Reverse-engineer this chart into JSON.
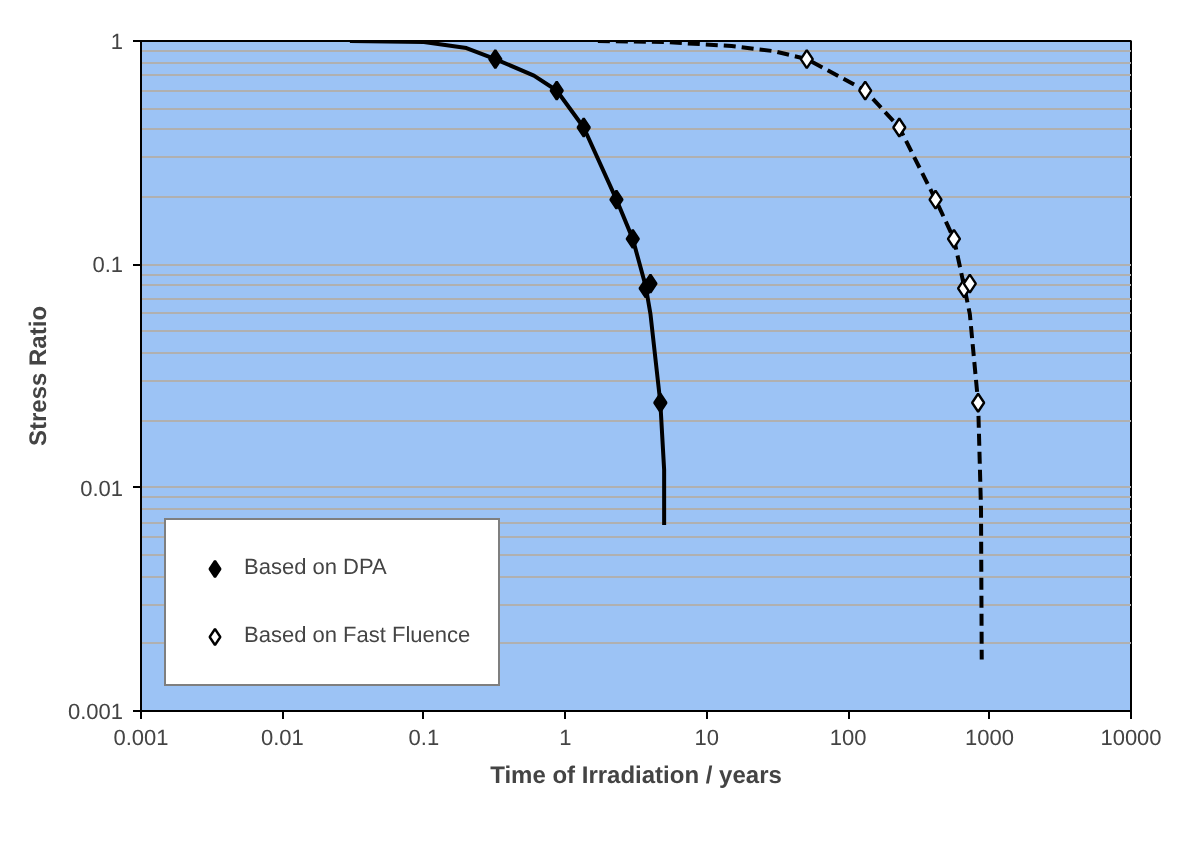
{
  "chart_data": {
    "type": "scatter",
    "xlabel": "Time of Irradiation / years",
    "ylabel": "Stress Ratio",
    "log": "xy",
    "xlim": [
      0.001,
      10000
    ],
    "xticks": [
      0.001,
      0.01,
      0.1,
      1,
      10,
      100,
      1000,
      10000
    ],
    "ylim": [
      0.001,
      1
    ],
    "yticks": [
      0.001,
      0.01,
      0.1,
      1
    ],
    "grid": "y",
    "legend": "bottom left",
    "series": [
      {
        "type": "line",
        "marker": "none",
        "line_style": "solid",
        "color": "#000000",
        "x": [
          0.03,
          0.1,
          0.2,
          0.32,
          0.6,
          0.87,
          1.35,
          2.3,
          3.0,
          3.7,
          4.0,
          4.7,
          5.0,
          5.0
        ],
        "values": [
          1,
          0.99,
          0.93,
          0.83,
          0.7,
          0.6,
          0.41,
          0.195,
          0.13,
          0.08,
          0.06,
          0.024,
          0.012,
          0.0068
        ]
      },
      {
        "type": "line",
        "marker": "none",
        "line_style": "dashed",
        "color": "#000000",
        "x": [
          1.7,
          5,
          15,
          30,
          51,
          132,
          230,
          415,
          560,
          660,
          725,
          830,
          870,
          880
        ],
        "values": [
          1,
          0.99,
          0.95,
          0.9,
          0.83,
          0.6,
          0.41,
          0.195,
          0.13,
          0.08,
          0.06,
          0.024,
          0.008,
          0.0017
        ]
      },
      {
        "name": "Based on DPA",
        "marker": "diamond",
        "color": "#000000",
        "x": [
          0.32,
          0.87,
          1.35,
          2.3,
          3.0,
          3.7,
          4.0,
          4.7
        ],
        "values": [
          0.83,
          0.6,
          0.41,
          0.195,
          0.13,
          0.078,
          0.082,
          0.024
        ]
      },
      {
        "name": "Based on Fast Fluence",
        "marker": "diamond",
        "color": "#000000",
        "x": [
          51,
          132,
          230,
          415,
          560,
          660,
          725,
          830
        ],
        "values": [
          0.83,
          0.6,
          0.41,
          0.195,
          0.13,
          0.078,
          0.082,
          0.024
        ]
      }
    ]
  }
}
